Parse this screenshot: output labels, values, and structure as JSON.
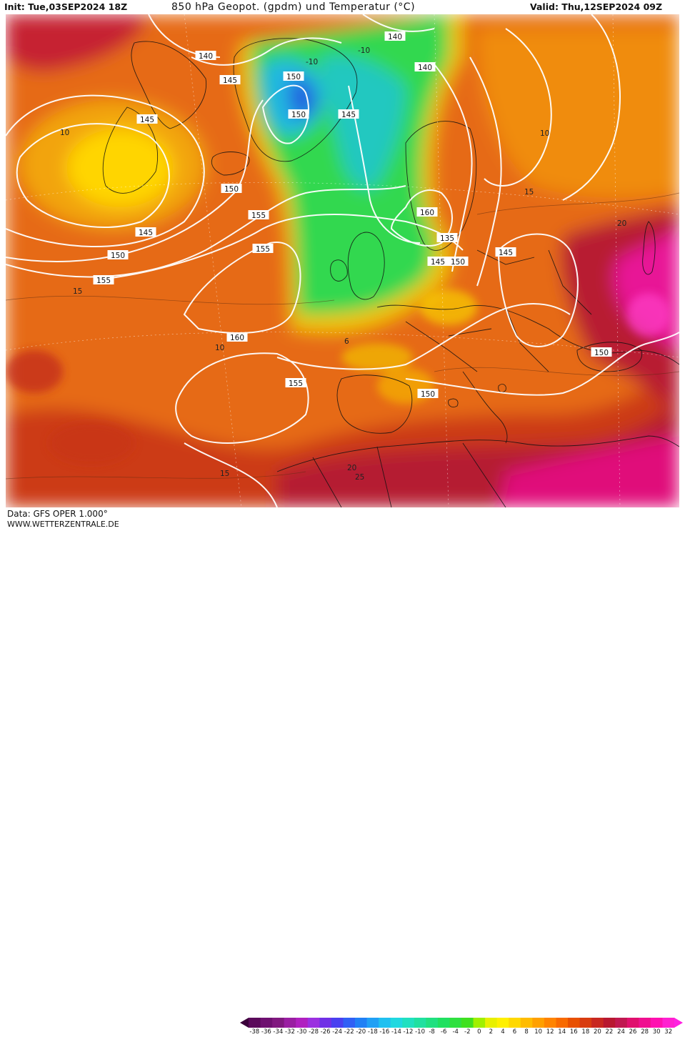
{
  "header": {
    "init": "Init: Tue,03SEP2024 18Z",
    "title": "850 hPa Geopot. (gpdm) und Temperatur (°C)",
    "valid": "Valid: Thu,12SEP2024 09Z"
  },
  "footer": {
    "data_source": "Data: GFS OPER 1.000°",
    "website": "WWW.WETTERZENTRALE.DE"
  },
  "legend": {
    "ticks": [
      "-38",
      "-36",
      "-34",
      "-32",
      "-30",
      "-28",
      "-26",
      "-24",
      "-22",
      "-20",
      "-18",
      "-16",
      "-14",
      "-12",
      "-10",
      "-8",
      "-6",
      "-4",
      "-2",
      "0",
      "2",
      "4",
      "6",
      "8",
      "10",
      "12",
      "14",
      "16",
      "18",
      "20",
      "22",
      "24",
      "26",
      "28",
      "30",
      "32"
    ],
    "colors": [
      "#5a0a5a",
      "#6e1070",
      "#80187f",
      "#9a1ea2",
      "#b020c0",
      "#9b30e0",
      "#7030e6",
      "#4a40f0",
      "#3060f5",
      "#2080f5",
      "#20a0f5",
      "#20c0f0",
      "#20d8e0",
      "#20e0c0",
      "#20e0a0",
      "#20e080",
      "#20e060",
      "#30e040",
      "#40e020",
      "#a0f000",
      "#e8f000",
      "#fff000",
      "#ffd800",
      "#ffbc00",
      "#ffa000",
      "#ff8400",
      "#f86a00",
      "#e85000",
      "#d83c10",
      "#c82820",
      "#b81830",
      "#c01850",
      "#e0106e",
      "#f01090",
      "#ff10b0",
      "#ff20d0"
    ]
  },
  "geopotential_labels": [
    "140",
    "140",
    "140",
    "145",
    "145",
    "145",
    "145",
    "145",
    "145",
    "150",
    "150",
    "150",
    "150",
    "150",
    "150",
    "150",
    "155",
    "155",
    "155",
    "155",
    "160",
    "160",
    "135"
  ],
  "temperature_labels": [
    "-10",
    "-10",
    "10",
    "10",
    "15",
    "15",
    "15",
    "10",
    "6",
    "20",
    "20",
    "25"
  ],
  "colors": {
    "warm_ocean": "#e86a14",
    "hot_south": "#c0201e",
    "very_hot": "#e0108a",
    "cold_core": "#2060e0",
    "mid_green": "#30d850",
    "contour": "#ffffff"
  }
}
